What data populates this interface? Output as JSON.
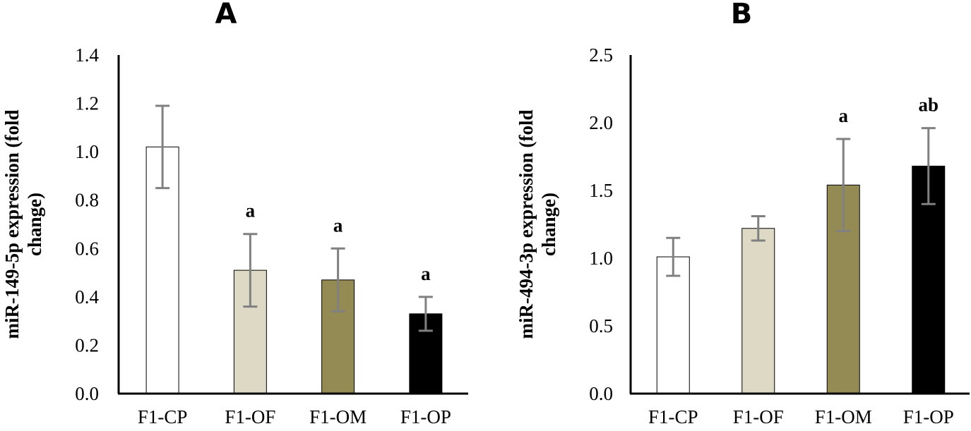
{
  "chart_data": [
    {
      "type": "bar",
      "panel": "A",
      "categories": [
        "F1-CP",
        "F1-OF",
        "F1-OM",
        "F1-OP"
      ],
      "values": [
        1.02,
        0.51,
        0.47,
        0.33
      ],
      "error": [
        0.17,
        0.15,
        0.13,
        0.07
      ],
      "significance": [
        "",
        "a",
        "a",
        "a"
      ],
      "bar_colors": [
        "#ffffff",
        "#ddd9c4",
        "#948a54",
        "#000000"
      ],
      "ylabel": [
        "miR-149-5p  expression (fold",
        "change)"
      ],
      "ylim": [
        0,
        1.4
      ],
      "yticks": [
        "0.0",
        "0.2",
        "0.4",
        "0.6",
        "0.8",
        "1.0",
        "1.2",
        "1.4"
      ],
      "grid": false
    },
    {
      "type": "bar",
      "panel": "B",
      "categories": [
        "F1-CP",
        "F1-OF",
        "F1-OM",
        "F1-OP"
      ],
      "values": [
        1.01,
        1.22,
        1.54,
        1.68
      ],
      "error": [
        0.14,
        0.09,
        0.34,
        0.28
      ],
      "significance": [
        "",
        "",
        "a",
        "ab"
      ],
      "bar_colors": [
        "#ffffff",
        "#ddd9c4",
        "#948a54",
        "#000000"
      ],
      "ylabel": [
        "miR-494-3p expression  (fold",
        "change)"
      ],
      "ylim": [
        0,
        2.5
      ],
      "yticks": [
        "0.0",
        "0.5",
        "1.0",
        "1.5",
        "2.0",
        "2.5"
      ],
      "grid": false
    }
  ]
}
